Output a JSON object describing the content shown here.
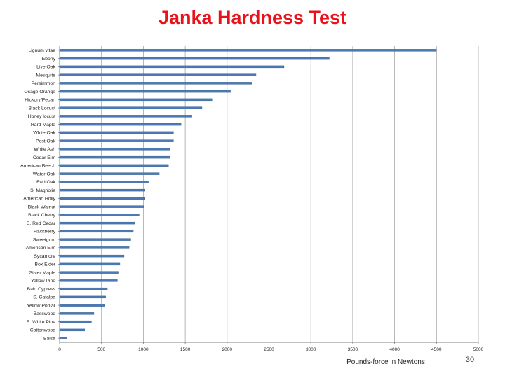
{
  "page_number": "30",
  "colors": {
    "bar": "#4a79b3",
    "bar_edge": "#2e5c8f",
    "grid": "#a6a6a6",
    "axis": "#7f7f7f",
    "title": "#e8121b"
  },
  "chart_data": {
    "type": "bar",
    "orientation": "horizontal",
    "title": "Janka Hardness Test",
    "xlabel": "Pounds-force in Newtons",
    "ylabel": "",
    "xlim": [
      0,
      5000
    ],
    "xticks": [
      0,
      500,
      1000,
      1500,
      2000,
      2500,
      3000,
      3500,
      4000,
      4500,
      5000
    ],
    "xtick_labels": [
      "0",
      "500",
      "1000",
      "1500",
      "2000",
      "2500",
      "3000",
      "3500",
      "4000",
      "4500",
      "5000"
    ],
    "grid": "vertical",
    "legend": "none",
    "categories": [
      "Lignum vitae",
      "Ebony",
      "Live Oak",
      "Mesquite",
      "Persimmon",
      "Osage Orange",
      "Hickory/Pecan",
      "Black Locust",
      "Honey locust",
      "Hard Maple",
      "White Oak",
      "Post Oak",
      "White Ash",
      "Cedar Elm",
      "American Beech",
      "Water Oak",
      "Red Oak",
      "S. Magnolia",
      "American Holly",
      "Black Walnut",
      "Black Cherry",
      "E. Red Cedar",
      "Hackberry",
      "Sweetgum",
      "American Elm",
      "Sycamore",
      "Box Elder",
      "Silver Maple",
      "Yellow Pine",
      "Bald Cypress",
      "S. Catalpa",
      "Yellow Poplar",
      "Basswood",
      "E. White Pine",
      "Cottonwood",
      "Balsa"
    ],
    "values": [
      4500,
      3220,
      2680,
      2345,
      2300,
      2040,
      1820,
      1700,
      1580,
      1450,
      1360,
      1360,
      1320,
      1320,
      1300,
      1190,
      1060,
      1020,
      1020,
      1010,
      950,
      900,
      880,
      850,
      830,
      770,
      720,
      700,
      690,
      570,
      550,
      540,
      410,
      380,
      300,
      90
    ]
  }
}
